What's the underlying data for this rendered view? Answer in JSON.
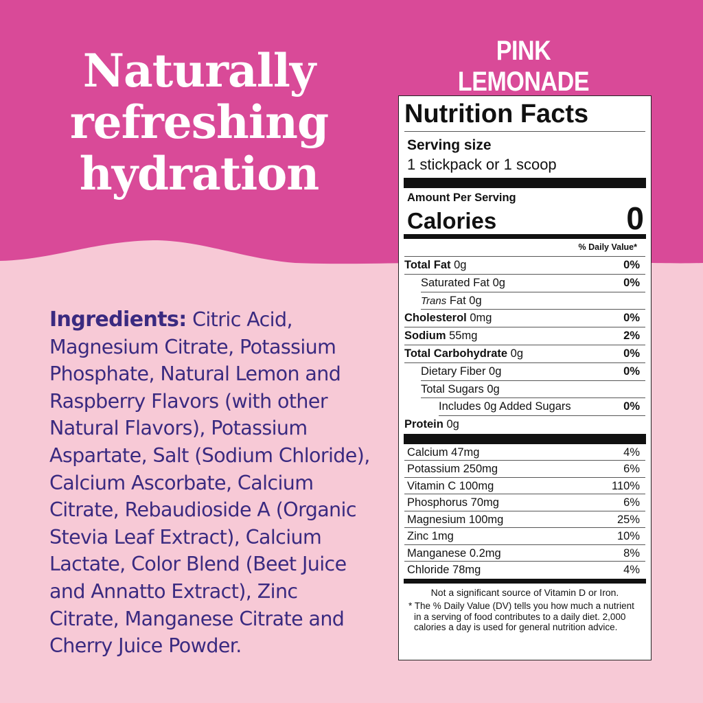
{
  "colors": {
    "top_bg": "#d94a98",
    "bottom_bg": "#f7c9d6",
    "ingredients_text": "#3a2a80"
  },
  "headline": [
    "Naturally",
    "refreshing",
    "hydration"
  ],
  "flavor": "PINK LEMONADE",
  "ingredients": {
    "label": "Ingredients:",
    "text": "Citric Acid, Magnesium Citrate, Potassium Phosphate, Natural Lemon and Raspberry Flavors (with other Natural Flavors), Potassium Aspartate, Salt (Sodium Chloride), Calcium Ascorbate, Calcium Citrate, Rebaudioside A (Organic Stevia Leaf Extract), Calcium Lactate, Color Blend (Beet Juice and Annatto Extract), Zinc Citrate, Manganese Citrate and Cherry Juice Powder."
  },
  "nutrition": {
    "title": "Nutrition Facts",
    "serving_label": "Serving size",
    "serving_value": "1 stickpack or 1 scoop",
    "amount_per_serving": "Amount Per Serving",
    "calories_label": "Calories",
    "calories_value": "0",
    "dv_header": "% Daily Value*",
    "rows": [
      {
        "name": "Total Fat",
        "amount": "0g",
        "dv": "0%",
        "bold": true,
        "indent": 0
      },
      {
        "name": "Saturated Fat",
        "amount": "0g",
        "dv": "0%",
        "bold": false,
        "indent": 1
      },
      {
        "name": "Trans",
        "name2": "Fat",
        "amount": "0g",
        "dv": "",
        "bold": false,
        "indent": 1,
        "italic": true
      },
      {
        "name": "Cholesterol",
        "amount": "0mg",
        "dv": "0%",
        "bold": true,
        "indent": 0
      },
      {
        "name": "Sodium",
        "amount": "55mg",
        "dv": "2%",
        "bold": true,
        "indent": 0
      },
      {
        "name": "Total Carbohydrate",
        "amount": "0g",
        "dv": "0%",
        "bold": true,
        "indent": 0
      },
      {
        "name": "Dietary Fiber",
        "amount": "0g",
        "dv": "0%",
        "bold": false,
        "indent": 1
      },
      {
        "name": "Total Sugars",
        "amount": "0g",
        "dv": "",
        "bold": false,
        "indent": 1
      },
      {
        "name": "Includes 0g Added Sugars",
        "amount": "",
        "dv": "0%",
        "bold": false,
        "indent": 2
      },
      {
        "name": "Protein",
        "amount": "0g",
        "dv": "",
        "bold": true,
        "indent": 0
      }
    ],
    "vitamins": [
      {
        "name": "Calcium 47mg",
        "dv": "4%"
      },
      {
        "name": "Potassium 250mg",
        "dv": "6%"
      },
      {
        "name": "Vitamin C 100mg",
        "dv": "110%"
      },
      {
        "name": "Phosphorus 70mg",
        "dv": "6%"
      },
      {
        "name": "Magnesium 100mg",
        "dv": "25%"
      },
      {
        "name": "Zinc 1mg",
        "dv": "10%"
      },
      {
        "name": "Manganese 0.2mg",
        "dv": "8%"
      },
      {
        "name": "Chloride 78mg",
        "dv": "4%"
      }
    ],
    "not_significant": "Not a significant source of Vitamin D or Iron.",
    "footnote": "* The % Daily Value (DV) tells you how much a nutrient in a serving of food contributes to a daily diet. 2,000 calories a day is used for general nutrition advice."
  }
}
